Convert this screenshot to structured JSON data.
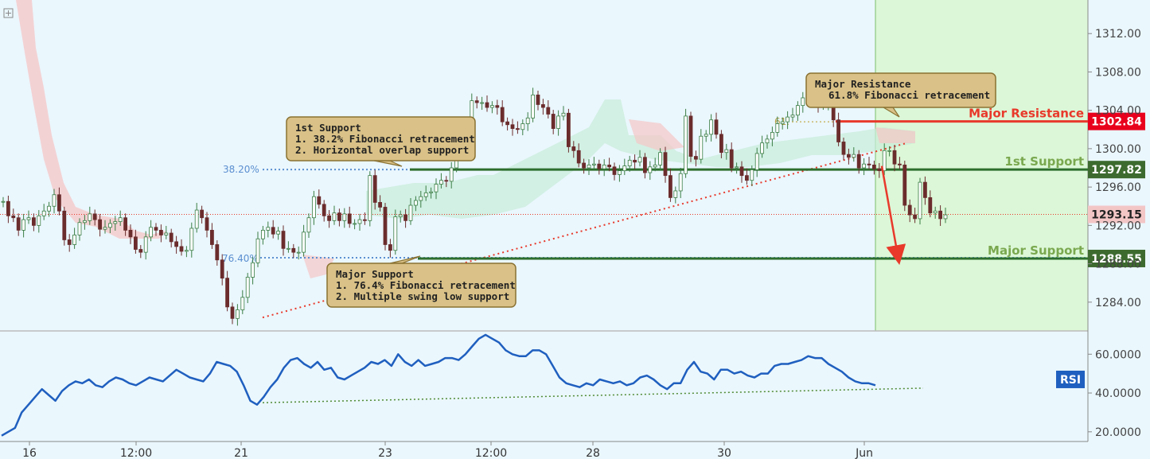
{
  "chart_data": {
    "type": "candlestick",
    "y_axis": {
      "range": [
        1281,
        1315
      ],
      "ticks": [
        1312,
        1308,
        1304,
        1300,
        1296,
        1292,
        1288,
        1284
      ],
      "tick_labels": [
        "1312.00",
        "1308.00",
        "1304.00",
        "1300.00",
        "1296.00",
        "1292.00",
        "1288.00",
        "1284.00"
      ]
    },
    "x_axis": {
      "tick_labels": [
        "16",
        "12:00",
        "21",
        "23",
        "12:00",
        "28",
        "30",
        "Jun"
      ],
      "tick_positions": [
        0.0,
        1.0,
        2.0,
        3.0,
        4.0,
        5.0,
        6.0,
        7.0
      ]
    },
    "levels": [
      {
        "name": "Major Resistance",
        "value": 1302.84,
        "label": "1302.84",
        "color": "#e8392b",
        "name_color": "#e8392b"
      },
      {
        "name": "1st Support",
        "value": 1297.82,
        "label": "1297.82",
        "color": "#2d6e2d",
        "name_color": "#7aa84f"
      },
      {
        "name": "Major Support",
        "value": 1288.55,
        "label": "1288.55",
        "color": "#2d6e2d",
        "name_color": "#7aa84f"
      }
    ],
    "current_price": {
      "value": 1293.15,
      "label": "1293.15",
      "color": "#e8392b"
    },
    "fib_levels": [
      {
        "label": "38.20%",
        "value": 1297.82
      },
      {
        "label": "76.40%",
        "value": 1288.55
      },
      {
        "label": "61.",
        "value": 1302.8
      }
    ],
    "annotations": [
      {
        "title": "1st Support",
        "lines": [
          "1. 38.2% Fibonacci retracement",
          "2. Horizontal overlap support"
        ]
      },
      {
        "title": "Major Support",
        "lines": [
          "1. 76.4% Fibonacci retracement",
          "2. Multiple swing low support"
        ]
      },
      {
        "title": "Major Resistance",
        "lines": [
          "61.8% Fibonacci retracement"
        ]
      }
    ],
    "price_series": [
      1294.5,
      1293,
      1292.8,
      1291.5,
      1292.6,
      1292.8,
      1292,
      1293,
      1293.5,
      1294,
      1295.2,
      1293.5,
      1290.5,
      1290,
      1291,
      1292.3,
      1292.5,
      1293.2,
      1292.6,
      1291.6,
      1291.8,
      1292.2,
      1292.4,
      1292.8,
      1291.5,
      1290.8,
      1289.5,
      1289.2,
      1290.8,
      1291.8,
      1291.5,
      1291,
      1291.2,
      1290.3,
      1289.8,
      1289.3,
      1289.4,
      1291.7,
      1293.6,
      1292.8,
      1291.5,
      1290,
      1288.4,
      1286.5,
      1283.5,
      1282.3,
      1283.2,
      1284.5,
      1286.6,
      1288.1,
      1290.6,
      1291.5,
      1291.8,
      1291.1,
      1291.4,
      1289.6,
      1289.6,
      1289.2,
      1289.2,
      1291.3,
      1292.8,
      1295,
      1294.2,
      1293,
      1292.5,
      1293.3,
      1292.5,
      1293.2,
      1292.2,
      1292.2,
      1292.6,
      1292.5,
      1297.2,
      1294.4,
      1293.9,
      1290,
      1289.4,
      1292.9,
      1293.1,
      1292.5,
      1294.1,
      1294.6,
      1295,
      1295.4,
      1295.5,
      1296.3,
      1296.7,
      1296.6,
      1298,
      1299.7,
      1300,
      1301.2,
      1305,
      1304.8,
      1304.8,
      1304.3,
      1304.5,
      1304.3,
      1302.8,
      1302.5,
      1302.1,
      1302,
      1302.6,
      1303.2,
      1305.6,
      1304.6,
      1304.3,
      1303.6,
      1302.1,
      1303.4,
      1303.7,
      1300.2,
      1299.8,
      1298.5,
      1298,
      1298.3,
      1298.4,
      1297.9,
      1298.3,
      1298.1,
      1297.3,
      1297.7,
      1298.2,
      1298.8,
      1298.6,
      1299.1,
      1297.5,
      1298.1,
      1298.3,
      1299.6,
      1297.2,
      1294.9,
      1295.6,
      1297.4,
      1303.4,
      1299.2,
      1298.9,
      1301.3,
      1301.5,
      1303,
      1301.5,
      1299.6,
      1299.9,
      1298,
      1298.1,
      1297.2,
      1296.7,
      1297.8,
      1299.5,
      1300.6,
      1301,
      1301.7,
      1302.6,
      1302.8,
      1303.3,
      1303.5,
      1304.5,
      1305.3,
      1305,
      1305,
      1304.5,
      1304.6,
      1305,
      1303,
      1300.7,
      1299.4,
      1299.1,
      1299.4,
      1298,
      1298.4,
      1298.3,
      1297.9,
      1297.7,
      1299.8,
      1299.8,
      1298.4,
      1298.3,
      1294.1,
      1293.1,
      1292.7,
      1296.5,
      1294.9,
      1293.3,
      1293.5,
      1292.7,
      1293.1
    ],
    "rsi": {
      "label": "RSI",
      "y_range": [
        15,
        72
      ],
      "ticks": [
        60,
        40,
        20
      ],
      "tick_labels": [
        "60.0000",
        "40.0000",
        "20.0000"
      ],
      "values": [
        18,
        20,
        22,
        30,
        34,
        38,
        42,
        39,
        36,
        41,
        44,
        46,
        45,
        47,
        44,
        43,
        46,
        48,
        47,
        45,
        44,
        46,
        48,
        47,
        46,
        49,
        52,
        50,
        48,
        47,
        46,
        50,
        56,
        55,
        54,
        51,
        44,
        36,
        34,
        38,
        43,
        47,
        53,
        57,
        58,
        55,
        53,
        56,
        52,
        53,
        48,
        47,
        49,
        51,
        53,
        56,
        55,
        57,
        54,
        60,
        56,
        54,
        57,
        54,
        55,
        56,
        58,
        58,
        57,
        60,
        64,
        68,
        70,
        68,
        66,
        62,
        60,
        59,
        59,
        62,
        62,
        60,
        54,
        48,
        45,
        44,
        43,
        45,
        44,
        47,
        46,
        45,
        46,
        44,
        45,
        48,
        49,
        47,
        44,
        42,
        45,
        45,
        52,
        56,
        51,
        50,
        47,
        52,
        52,
        50,
        51,
        49,
        48,
        50,
        50,
        54,
        55,
        55,
        56,
        57,
        59,
        58,
        58,
        55,
        53,
        51,
        48,
        46,
        45,
        45,
        44
      ]
    }
  }
}
